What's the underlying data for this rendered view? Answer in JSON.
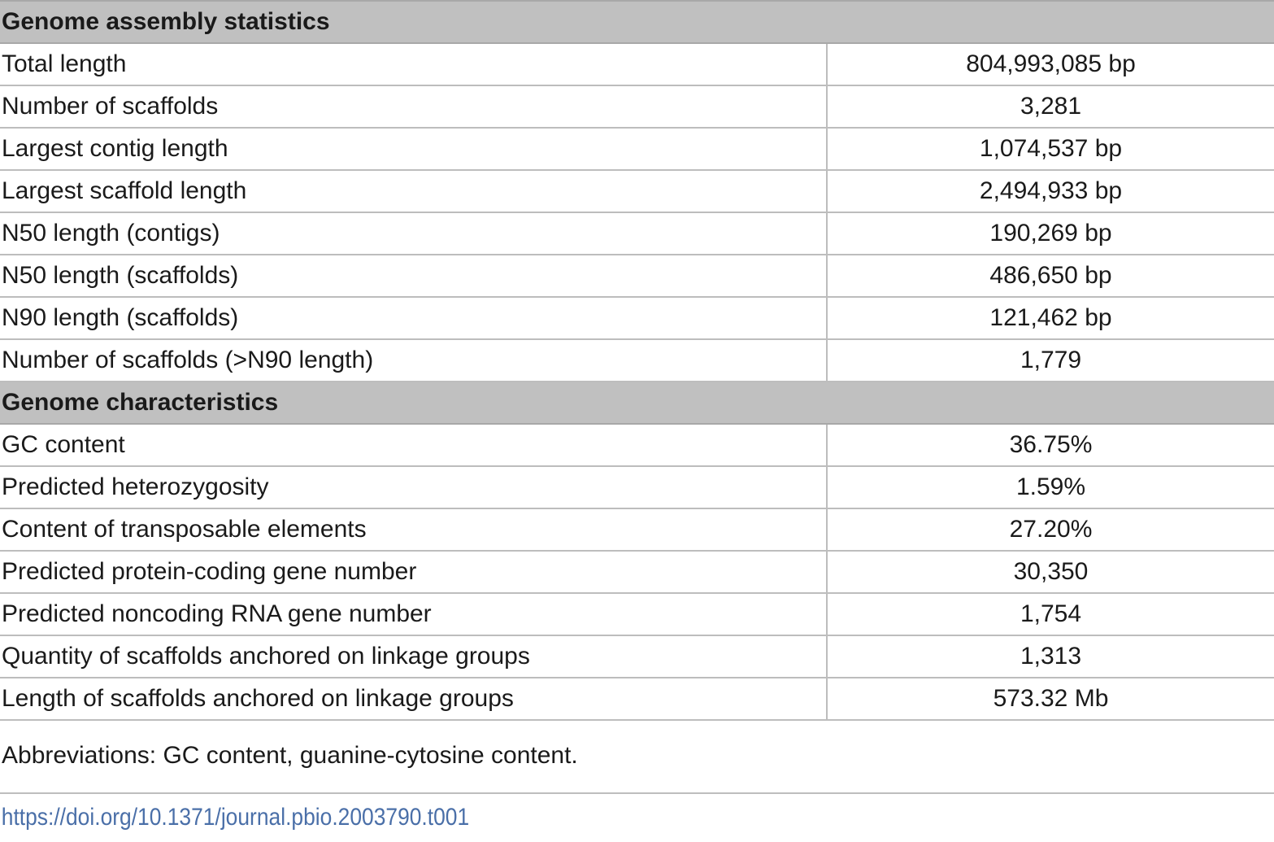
{
  "sections": [
    {
      "title": "Genome assembly statistics",
      "rows": [
        {
          "label": "Total length",
          "value": "804,993,085 bp"
        },
        {
          "label": "Number of scaffolds",
          "value": "3,281"
        },
        {
          "label": "Largest contig length",
          "value": "1,074,537 bp"
        },
        {
          "label": "Largest scaffold length",
          "value": "2,494,933 bp"
        },
        {
          "label": "N50 length (contigs)",
          "value": "190,269 bp"
        },
        {
          "label": "N50 length (scaffolds)",
          "value": "486,650 bp"
        },
        {
          "label": "N90 length (scaffolds)",
          "value": "121,462 bp"
        },
        {
          "label": "Number of scaffolds (>N90 length)",
          "value": "1,779"
        }
      ]
    },
    {
      "title": "Genome characteristics",
      "rows": [
        {
          "label": "GC content",
          "value": "36.75%"
        },
        {
          "label": "Predicted heterozygosity",
          "value": "1.59%"
        },
        {
          "label": "Content of transposable elements",
          "value": "27.20%"
        },
        {
          "label": "Predicted protein-coding gene number",
          "value": "30,350"
        },
        {
          "label": "Predicted noncoding RNA gene number",
          "value": "1,754"
        },
        {
          "label": "Quantity of scaffolds anchored on linkage groups",
          "value": "1,313"
        },
        {
          "label": "Length of scaffolds anchored on linkage groups",
          "value": "573.32 Mb"
        }
      ]
    }
  ],
  "footnote": "Abbreviations: GC content, guanine-cytosine content.",
  "doi": "https://doi.org/10.1371/journal.pbio.2003790.t001",
  "colors": {
    "section_header_bg": "#c0c0c0",
    "rule": "#bdbdbd",
    "doi_link": "#4a6fa8"
  }
}
